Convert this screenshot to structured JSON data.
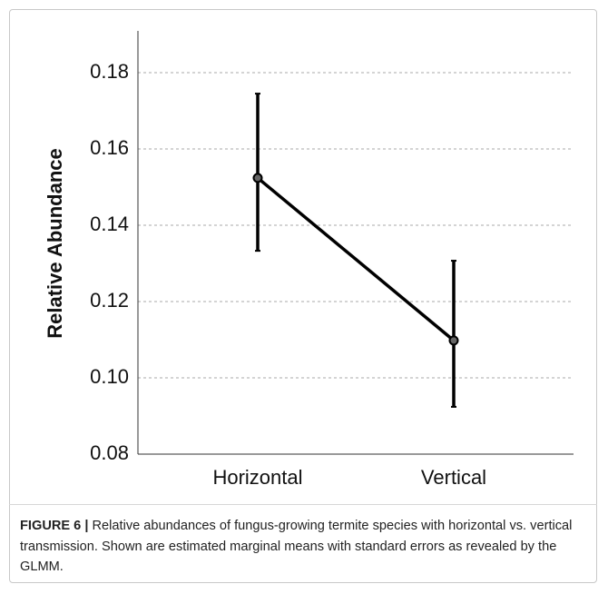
{
  "chart_data": {
    "type": "errorbar-line",
    "ylabel": "Relative Abundance",
    "categories": [
      "Horizontal",
      "Vertical"
    ],
    "values": [
      0.1524,
      0.1098
    ],
    "lower": [
      0.1333,
      0.0924
    ],
    "upper": [
      0.1745,
      0.1307
    ],
    "color": "#000000",
    "ylim": [
      0.08,
      0.19
    ],
    "yticks": [
      {
        "value": 0.08,
        "label": "0.08"
      },
      {
        "value": 0.1,
        "label": "0.10"
      },
      {
        "value": 0.12,
        "label": "0.12"
      },
      {
        "value": 0.14,
        "label": "0.14"
      },
      {
        "value": 0.16,
        "label": "0.16"
      },
      {
        "value": 0.18,
        "label": "0.18"
      }
    ],
    "grid": true
  },
  "caption": {
    "label": "FIGURE 6 |",
    "text": "Relative abundances of fungus-growing termite species with horizontal vs. vertical transmission. Shown are estimated marginal means with standard errors as revealed by the GLMM."
  }
}
